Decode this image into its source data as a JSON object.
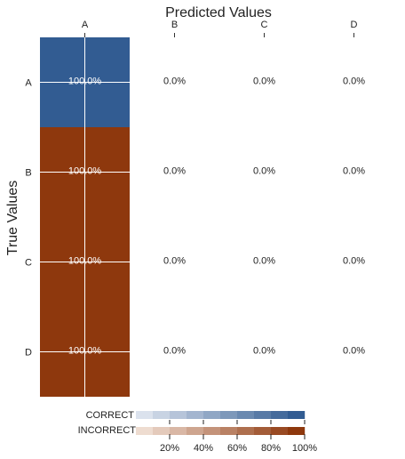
{
  "chart_data": {
    "type": "heatmap",
    "title": "Predicted Values",
    "xlabel": "",
    "ylabel": "True Values",
    "categories_x": [
      "A",
      "B",
      "C",
      "D"
    ],
    "categories_y": [
      "A",
      "B",
      "C",
      "D"
    ],
    "cells": [
      {
        "true": "A",
        "pred": "A",
        "value": 100.0,
        "label": "100.0%",
        "correct": true
      },
      {
        "true": "A",
        "pred": "B",
        "value": 0.0,
        "label": "0.0%",
        "correct": false
      },
      {
        "true": "A",
        "pred": "C",
        "value": 0.0,
        "label": "0.0%",
        "correct": false
      },
      {
        "true": "A",
        "pred": "D",
        "value": 0.0,
        "label": "0.0%",
        "correct": false
      },
      {
        "true": "B",
        "pred": "A",
        "value": 100.0,
        "label": "100.0%",
        "correct": false
      },
      {
        "true": "B",
        "pred": "B",
        "value": 0.0,
        "label": "0.0%",
        "correct": true
      },
      {
        "true": "B",
        "pred": "C",
        "value": 0.0,
        "label": "0.0%",
        "correct": false
      },
      {
        "true": "B",
        "pred": "D",
        "value": 0.0,
        "label": "0.0%",
        "correct": false
      },
      {
        "true": "C",
        "pred": "A",
        "value": 100.0,
        "label": "100.0%",
        "correct": false
      },
      {
        "true": "C",
        "pred": "B",
        "value": 0.0,
        "label": "0.0%",
        "correct": false
      },
      {
        "true": "C",
        "pred": "C",
        "value": 0.0,
        "label": "0.0%",
        "correct": true
      },
      {
        "true": "C",
        "pred": "D",
        "value": 0.0,
        "label": "0.0%",
        "correct": false
      },
      {
        "true": "D",
        "pred": "A",
        "value": 100.0,
        "label": "100.0%",
        "correct": false
      },
      {
        "true": "D",
        "pred": "B",
        "value": 0.0,
        "label": "0.0%",
        "correct": false
      },
      {
        "true": "D",
        "pred": "C",
        "value": 0.0,
        "label": "0.0%",
        "correct": false
      },
      {
        "true": "D",
        "pred": "D",
        "value": 0.0,
        "label": "0.0%",
        "correct": true
      }
    ],
    "legend": {
      "correct_label": "CORRECT",
      "incorrect_label": "INCORRECT",
      "ticks": [
        "20%",
        "40%",
        "60%",
        "80%",
        "100%"
      ],
      "range": [
        0,
        100
      ]
    },
    "colors": {
      "correct_max": "#325c92",
      "correct_min": "#eef1f7",
      "incorrect_max": "#8e380d",
      "incorrect_min": "#f9eee6",
      "background": "#ffffff",
      "text_dark": "#222222",
      "text_light": "#ffffff"
    }
  }
}
